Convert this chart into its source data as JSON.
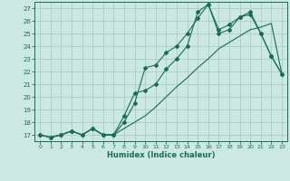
{
  "xlabel": "Humidex (Indice chaleur)",
  "xlim": [
    -0.5,
    23.5
  ],
  "ylim": [
    16.5,
    27.5
  ],
  "xticks": [
    0,
    1,
    2,
    3,
    4,
    5,
    6,
    7,
    8,
    9,
    10,
    11,
    12,
    13,
    14,
    15,
    16,
    17,
    18,
    19,
    20,
    21,
    22,
    23
  ],
  "yticks": [
    17,
    18,
    19,
    20,
    21,
    22,
    23,
    24,
    25,
    26,
    27
  ],
  "bg_color": "#cce8e2",
  "grid_color": "#aaccc6",
  "line_color": "#1a6b5a",
  "x": [
    0,
    1,
    2,
    3,
    4,
    5,
    6,
    7,
    8,
    9,
    10,
    11,
    12,
    13,
    14,
    15,
    16,
    17,
    18,
    19,
    20,
    21,
    22,
    23
  ],
  "line1_y": [
    17.0,
    16.8,
    17.0,
    17.3,
    17.0,
    17.5,
    17.0,
    17.0,
    18.5,
    20.3,
    20.5,
    21.0,
    22.2,
    23.0,
    24.0,
    26.7,
    27.3,
    25.0,
    25.3,
    26.3,
    26.7,
    25.0,
    23.2,
    21.8
  ],
  "line2_y": [
    17.0,
    16.8,
    17.0,
    17.3,
    17.0,
    17.5,
    17.0,
    17.0,
    18.0,
    19.5,
    22.3,
    22.5,
    23.5,
    24.0,
    25.0,
    26.2,
    27.3,
    25.3,
    25.7,
    26.3,
    26.5,
    25.0,
    23.2,
    21.8
  ],
  "line3_y": [
    17.0,
    16.8,
    17.0,
    17.3,
    17.0,
    17.5,
    17.0,
    17.0,
    17.5,
    18.0,
    18.5,
    19.2,
    20.0,
    20.8,
    21.5,
    22.3,
    23.0,
    23.8,
    24.3,
    24.8,
    25.3,
    25.5,
    25.8,
    21.8
  ]
}
